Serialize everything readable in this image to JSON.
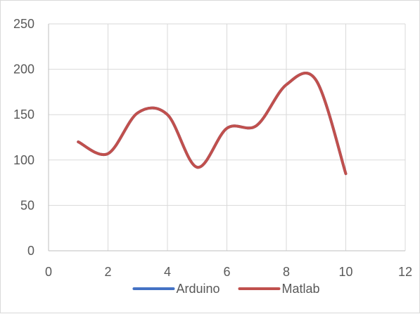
{
  "chart_data": {
    "type": "line",
    "smooth": true,
    "x": [
      1,
      2,
      3,
      4,
      5,
      6,
      7,
      8,
      9,
      10
    ],
    "series": [
      {
        "name": "Arduino",
        "color": "#4472c4",
        "values": [
          120,
          107,
          152,
          150,
          92,
          135,
          138,
          183,
          188,
          85
        ]
      },
      {
        "name": "Matlab",
        "color": "#c0504d",
        "values": [
          120,
          107,
          152,
          150,
          92,
          135,
          138,
          183,
          188,
          85
        ]
      }
    ],
    "xlim": [
      0,
      12
    ],
    "ylim": [
      0,
      250
    ],
    "x_ticks": [
      0,
      2,
      4,
      6,
      8,
      10,
      12
    ],
    "y_ticks": [
      0,
      50,
      100,
      150,
      200,
      250
    ],
    "grid": true,
    "legend_position": "bottom",
    "title": "",
    "xlabel": "",
    "ylabel": ""
  }
}
